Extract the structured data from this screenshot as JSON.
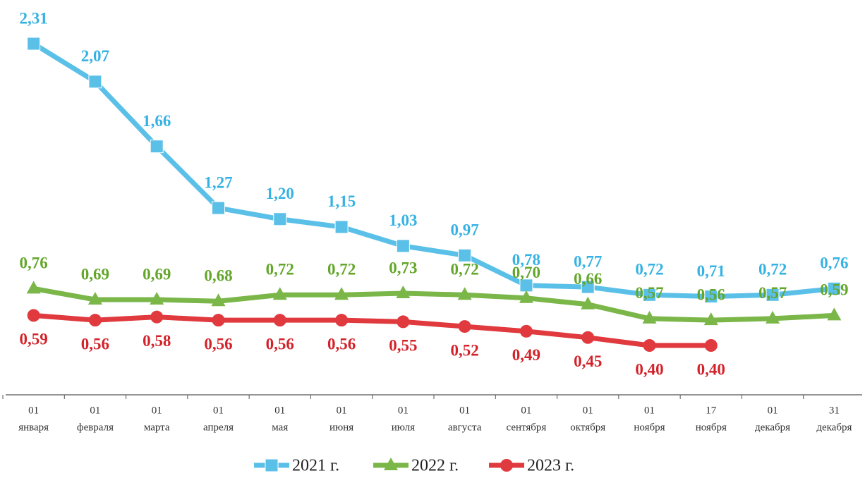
{
  "chart_data": {
    "type": "line",
    "categories": [
      [
        "01",
        "января"
      ],
      [
        "01",
        "февраля"
      ],
      [
        "01",
        "марта"
      ],
      [
        "01",
        "апреля"
      ],
      [
        "01",
        "мая"
      ],
      [
        "01",
        "июня"
      ],
      [
        "01",
        "июля"
      ],
      [
        "01",
        "августа"
      ],
      [
        "01",
        "сентября"
      ],
      [
        "01",
        "октября"
      ],
      [
        "01",
        "ноября"
      ],
      [
        "17",
        "ноября"
      ],
      [
        "01",
        "декабря"
      ],
      [
        "31",
        "декабря"
      ]
    ],
    "series": [
      {
        "name": "2021 г.",
        "color": "#5bc0e8",
        "label_color": "#35b2e3",
        "marker": "square",
        "values": [
          2.31,
          2.07,
          1.66,
          1.27,
          1.2,
          1.15,
          1.03,
          0.97,
          0.78,
          0.77,
          0.72,
          0.71,
          0.72,
          0.76
        ],
        "value_labels": [
          "2,31",
          "2,07",
          "1,66",
          "1,27",
          "1,20",
          "1,15",
          "1,03",
          "0,97",
          "0,78",
          "0,77",
          "0,72",
          "0,71",
          "0,72",
          "0,76"
        ]
      },
      {
        "name": "2022 г.",
        "color": "#7ab648",
        "label_color": "#63a62a",
        "marker": "triangle",
        "values": [
          0.76,
          0.69,
          0.69,
          0.68,
          0.72,
          0.72,
          0.73,
          0.72,
          0.7,
          0.66,
          0.57,
          0.56,
          0.57,
          0.59
        ],
        "value_labels": [
          "0,76",
          "0,69",
          "0,69",
          "0,68",
          "0,72",
          "0,72",
          "0,73",
          "0,72",
          "0,70",
          "0,66",
          "0,57",
          "0,56",
          "0,57",
          "0,59"
        ]
      },
      {
        "name": "2023 г.",
        "color": "#e0393e",
        "label_color": "#d3222a",
        "marker": "circle",
        "values": [
          0.59,
          0.56,
          0.58,
          0.56,
          0.56,
          0.56,
          0.55,
          0.52,
          0.49,
          0.45,
          0.4,
          0.4,
          null,
          null
        ],
        "value_labels": [
          "0,59",
          "0,56",
          "0,58",
          "0,56",
          "0,56",
          "0,56",
          "0,55",
          "0,52",
          "0,49",
          "0,45",
          "0,40",
          "0,40",
          null,
          null
        ]
      }
    ]
  }
}
